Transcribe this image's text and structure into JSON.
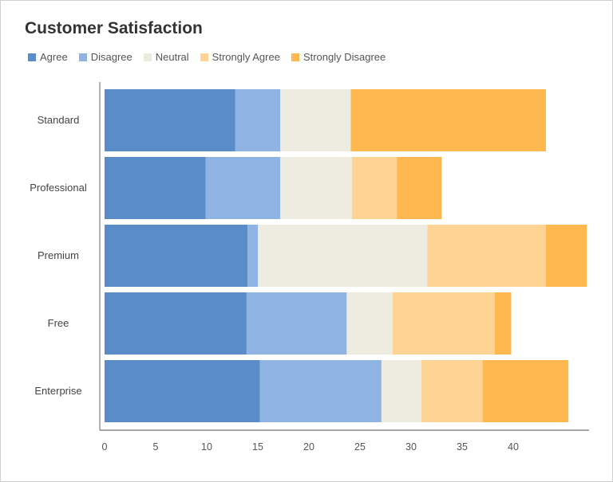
{
  "chart_data": {
    "type": "bar",
    "orientation": "horizontal",
    "stacked": true,
    "title": "Customer Satisfaction",
    "categories": [
      "Standard",
      "Professional",
      "Premium",
      "Free",
      "Enterprise"
    ],
    "series": [
      {
        "name": "Agree",
        "color": "#5b8cca",
        "values": [
          12.8,
          9.9,
          14.0,
          13.9,
          15.2
        ]
      },
      {
        "name": "Disagree",
        "color": "#8fb3e3",
        "values": [
          4.4,
          7.3,
          1.0,
          9.8,
          11.9
        ]
      },
      {
        "name": "Neutral",
        "color": "#eeebe0",
        "values": [
          6.9,
          7.0,
          16.6,
          4.5,
          3.9
        ]
      },
      {
        "name": "Strongly Agree",
        "color": "#ffd394",
        "values": [
          0,
          4.4,
          11.6,
          10.0,
          6.0
        ]
      },
      {
        "name": "Strongly Disagree",
        "color": "#ffb74f",
        "values": [
          19.1,
          4.4,
          4.0,
          1.6,
          8.4
        ]
      }
    ],
    "xticks": [
      0,
      5,
      10,
      15,
      20,
      25,
      30,
      35,
      40
    ],
    "xlim": [
      0,
      47.5
    ],
    "grid": false,
    "legend_position": "top-left",
    "xlabel": "",
    "ylabel": ""
  }
}
